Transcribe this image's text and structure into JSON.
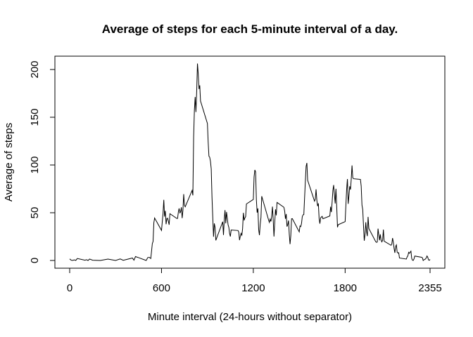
{
  "chart_data": {
    "type": "line",
    "title": "Average of steps for each 5-minute interval of a day.",
    "xlabel": "Minute interval (24-hours without separator)",
    "ylabel": "Average of steps",
    "xlim": [
      0,
      2355
    ],
    "ylim": [
      0,
      206
    ],
    "x_ticks": [
      0,
      600,
      1200,
      1800,
      2355
    ],
    "y_ticks": [
      0,
      50,
      100,
      150,
      200
    ],
    "grid": false,
    "series": [
      {
        "values": [
          [
            0,
            1.7
          ],
          [
            10,
            0.3
          ],
          [
            20,
            0.1
          ],
          [
            30,
            0.6
          ],
          [
            40,
            0.1
          ],
          [
            50,
            2.1
          ],
          [
            100,
            0.3
          ],
          [
            110,
            0.8
          ],
          [
            120,
            0.0
          ],
          [
            130,
            1.5
          ],
          [
            150,
            0.3
          ],
          [
            200,
            0.0
          ],
          [
            250,
            1.5
          ],
          [
            300,
            0.0
          ],
          [
            330,
            1.6
          ],
          [
            350,
            0.2
          ],
          [
            410,
            2.6
          ],
          [
            420,
            0.3
          ],
          [
            430,
            4.1
          ],
          [
            440,
            3.5
          ],
          [
            450,
            3.0
          ],
          [
            500,
            0.0
          ],
          [
            510,
            3.0
          ],
          [
            520,
            3.3
          ],
          [
            530,
            2.1
          ],
          [
            540,
            17.6
          ],
          [
            545,
            20.0
          ],
          [
            550,
            39.5
          ],
          [
            555,
            44.5
          ],
          [
            600,
            31.5
          ],
          [
            610,
            49.3
          ],
          [
            615,
            63.5
          ],
          [
            620,
            46.0
          ],
          [
            625,
            52.0
          ],
          [
            630,
            38.0
          ],
          [
            635,
            44.0
          ],
          [
            640,
            44.2
          ],
          [
            650,
            37.4
          ],
          [
            655,
            49.0
          ],
          [
            700,
            44.0
          ],
          [
            705,
            44.0
          ],
          [
            710,
            50.5
          ],
          [
            715,
            54.5
          ],
          [
            720,
            49.9
          ],
          [
            725,
            50.9
          ],
          [
            730,
            55.7
          ],
          [
            735,
            44.3
          ],
          [
            740,
            52.3
          ],
          [
            745,
            69.5
          ],
          [
            750,
            57.8
          ],
          [
            755,
            56.2
          ],
          [
            800,
            73.4
          ],
          [
            805,
            68.2
          ],
          [
            810,
            129.4
          ],
          [
            815,
            157.5
          ],
          [
            820,
            171.2
          ],
          [
            825,
            155.4
          ],
          [
            830,
            177.3
          ],
          [
            835,
            206.2
          ],
          [
            840,
            195.9
          ],
          [
            845,
            179.6
          ],
          [
            850,
            183.4
          ],
          [
            855,
            167.0
          ],
          [
            900,
            143.5
          ],
          [
            905,
            124.0
          ],
          [
            910,
            109.1
          ],
          [
            915,
            108.1
          ],
          [
            920,
            103.7
          ],
          [
            925,
            95.9
          ],
          [
            930,
            66.2
          ],
          [
            935,
            45.2
          ],
          [
            940,
            24.8
          ],
          [
            945,
            38.8
          ],
          [
            950,
            34.9
          ],
          [
            955,
            21.1
          ],
          [
            1000,
            40.6
          ],
          [
            1005,
            26.7
          ],
          [
            1010,
            42.4
          ],
          [
            1015,
            52.7
          ],
          [
            1020,
            38.9
          ],
          [
            1025,
            50.8
          ],
          [
            1030,
            44.3
          ],
          [
            1035,
            37.4
          ],
          [
            1040,
            34.7
          ],
          [
            1045,
            28.3
          ],
          [
            1050,
            25.1
          ],
          [
            1055,
            31.9
          ],
          [
            1100,
            31.4
          ],
          [
            1105,
            29.7
          ],
          [
            1110,
            21.3
          ],
          [
            1115,
            25.5
          ],
          [
            1120,
            28.4
          ],
          [
            1125,
            26.5
          ],
          [
            1130,
            33.3
          ],
          [
            1135,
            49.9
          ],
          [
            1140,
            42.0
          ],
          [
            1145,
            44.6
          ],
          [
            1150,
            46.0
          ],
          [
            1155,
            59.2
          ],
          [
            1200,
            63.9
          ],
          [
            1205,
            87.7
          ],
          [
            1210,
            94.8
          ],
          [
            1215,
            92.8
          ],
          [
            1220,
            63.4
          ],
          [
            1225,
            50.2
          ],
          [
            1230,
            54.5
          ],
          [
            1235,
            32.4
          ],
          [
            1240,
            26.5
          ],
          [
            1245,
            37.7
          ],
          [
            1250,
            45.1
          ],
          [
            1255,
            67.3
          ],
          [
            1300,
            42.3
          ],
          [
            1305,
            39.9
          ],
          [
            1310,
            43.3
          ],
          [
            1315,
            40.9
          ],
          [
            1320,
            46.2
          ],
          [
            1325,
            56.4
          ],
          [
            1330,
            42.8
          ],
          [
            1335,
            25.1
          ],
          [
            1340,
            39.9
          ],
          [
            1345,
            53.5
          ],
          [
            1350,
            47.3
          ],
          [
            1355,
            60.8
          ],
          [
            1400,
            55.7
          ],
          [
            1405,
            51.6
          ],
          [
            1410,
            43.6
          ],
          [
            1415,
            48.7
          ],
          [
            1420,
            35.5
          ],
          [
            1425,
            37.5
          ],
          [
            1430,
            41.8
          ],
          [
            1435,
            27.5
          ],
          [
            1440,
            17.1
          ],
          [
            1445,
            26.1
          ],
          [
            1450,
            43.7
          ],
          [
            1455,
            43.8
          ],
          [
            1500,
            30.0
          ],
          [
            1505,
            36.1
          ],
          [
            1510,
            35.5
          ],
          [
            1515,
            38.8
          ],
          [
            1520,
            45.9
          ],
          [
            1525,
            47.8
          ],
          [
            1530,
            48.1
          ],
          [
            1535,
            65.3
          ],
          [
            1540,
            82.9
          ],
          [
            1545,
            98.7
          ],
          [
            1550,
            102.1
          ],
          [
            1555,
            83.96
          ],
          [
            1600,
            62.1
          ],
          [
            1605,
            64.1
          ],
          [
            1610,
            74.5
          ],
          [
            1615,
            63.2
          ],
          [
            1620,
            56.9
          ],
          [
            1625,
            59.8
          ],
          [
            1630,
            43.9
          ],
          [
            1635,
            38.6
          ],
          [
            1640,
            44.7
          ],
          [
            1645,
            45.5
          ],
          [
            1650,
            46.2
          ],
          [
            1655,
            43.7
          ],
          [
            1700,
            46.6
          ],
          [
            1705,
            56.3
          ],
          [
            1710,
            50.7
          ],
          [
            1715,
            61.2
          ],
          [
            1720,
            73.4
          ],
          [
            1725,
            79.0
          ],
          [
            1730,
            68.9
          ],
          [
            1735,
            59.7
          ],
          [
            1740,
            75.1
          ],
          [
            1745,
            56.5
          ],
          [
            1750,
            34.8
          ],
          [
            1755,
            37.5
          ],
          [
            1800,
            40.7
          ],
          [
            1805,
            58.0
          ],
          [
            1810,
            74.7
          ],
          [
            1815,
            85.3
          ],
          [
            1820,
            59.3
          ],
          [
            1825,
            67.8
          ],
          [
            1830,
            77.7
          ],
          [
            1835,
            74.2
          ],
          [
            1840,
            85.3
          ],
          [
            1845,
            99.5
          ],
          [
            1850,
            86.6
          ],
          [
            1855,
            85.6
          ],
          [
            1900,
            84.9
          ],
          [
            1905,
            77.8
          ],
          [
            1910,
            58.0
          ],
          [
            1915,
            53.4
          ],
          [
            1920,
            36.3
          ],
          [
            1925,
            20.7
          ],
          [
            1930,
            27.4
          ],
          [
            1935,
            40.0
          ],
          [
            1940,
            30.2
          ],
          [
            1945,
            25.5
          ],
          [
            1950,
            45.7
          ],
          [
            1955,
            33.5
          ],
          [
            2000,
            19.6
          ],
          [
            2005,
            19.0
          ],
          [
            2010,
            19.3
          ],
          [
            2015,
            33.3
          ],
          [
            2020,
            26.8
          ],
          [
            2025,
            21.2
          ],
          [
            2030,
            27.3
          ],
          [
            2035,
            21.3
          ],
          [
            2040,
            19.5
          ],
          [
            2045,
            21.3
          ],
          [
            2050,
            32.3
          ],
          [
            2055,
            20.2
          ],
          [
            2100,
            15.9
          ],
          [
            2105,
            17.2
          ],
          [
            2110,
            23.5
          ],
          [
            2115,
            19.2
          ],
          [
            2120,
            12.5
          ],
          [
            2125,
            8.0
          ],
          [
            2130,
            14.7
          ],
          [
            2135,
            16.3
          ],
          [
            2140,
            8.7
          ],
          [
            2145,
            7.8
          ],
          [
            2150,
            8.1
          ],
          [
            2155,
            2.6
          ],
          [
            2200,
            1.5
          ],
          [
            2205,
            3.7
          ],
          [
            2210,
            4.8
          ],
          [
            2215,
            8.5
          ],
          [
            2220,
            7.5
          ],
          [
            2225,
            8.7
          ],
          [
            2230,
            9.8
          ],
          [
            2235,
            2.2
          ],
          [
            2240,
            0.3
          ],
          [
            2245,
            0.1
          ],
          [
            2250,
            1.6
          ],
          [
            2255,
            4.6
          ],
          [
            2300,
            3.3
          ],
          [
            2305,
            2.8
          ],
          [
            2310,
            0.0
          ],
          [
            2315,
            0.8
          ],
          [
            2320,
            0.96
          ],
          [
            2325,
            1.6
          ],
          [
            2330,
            2.6
          ],
          [
            2335,
            4.7
          ],
          [
            2340,
            3.3
          ],
          [
            2345,
            0.6
          ],
          [
            2350,
            0.2
          ],
          [
            2355,
            1.1
          ]
        ]
      }
    ]
  }
}
